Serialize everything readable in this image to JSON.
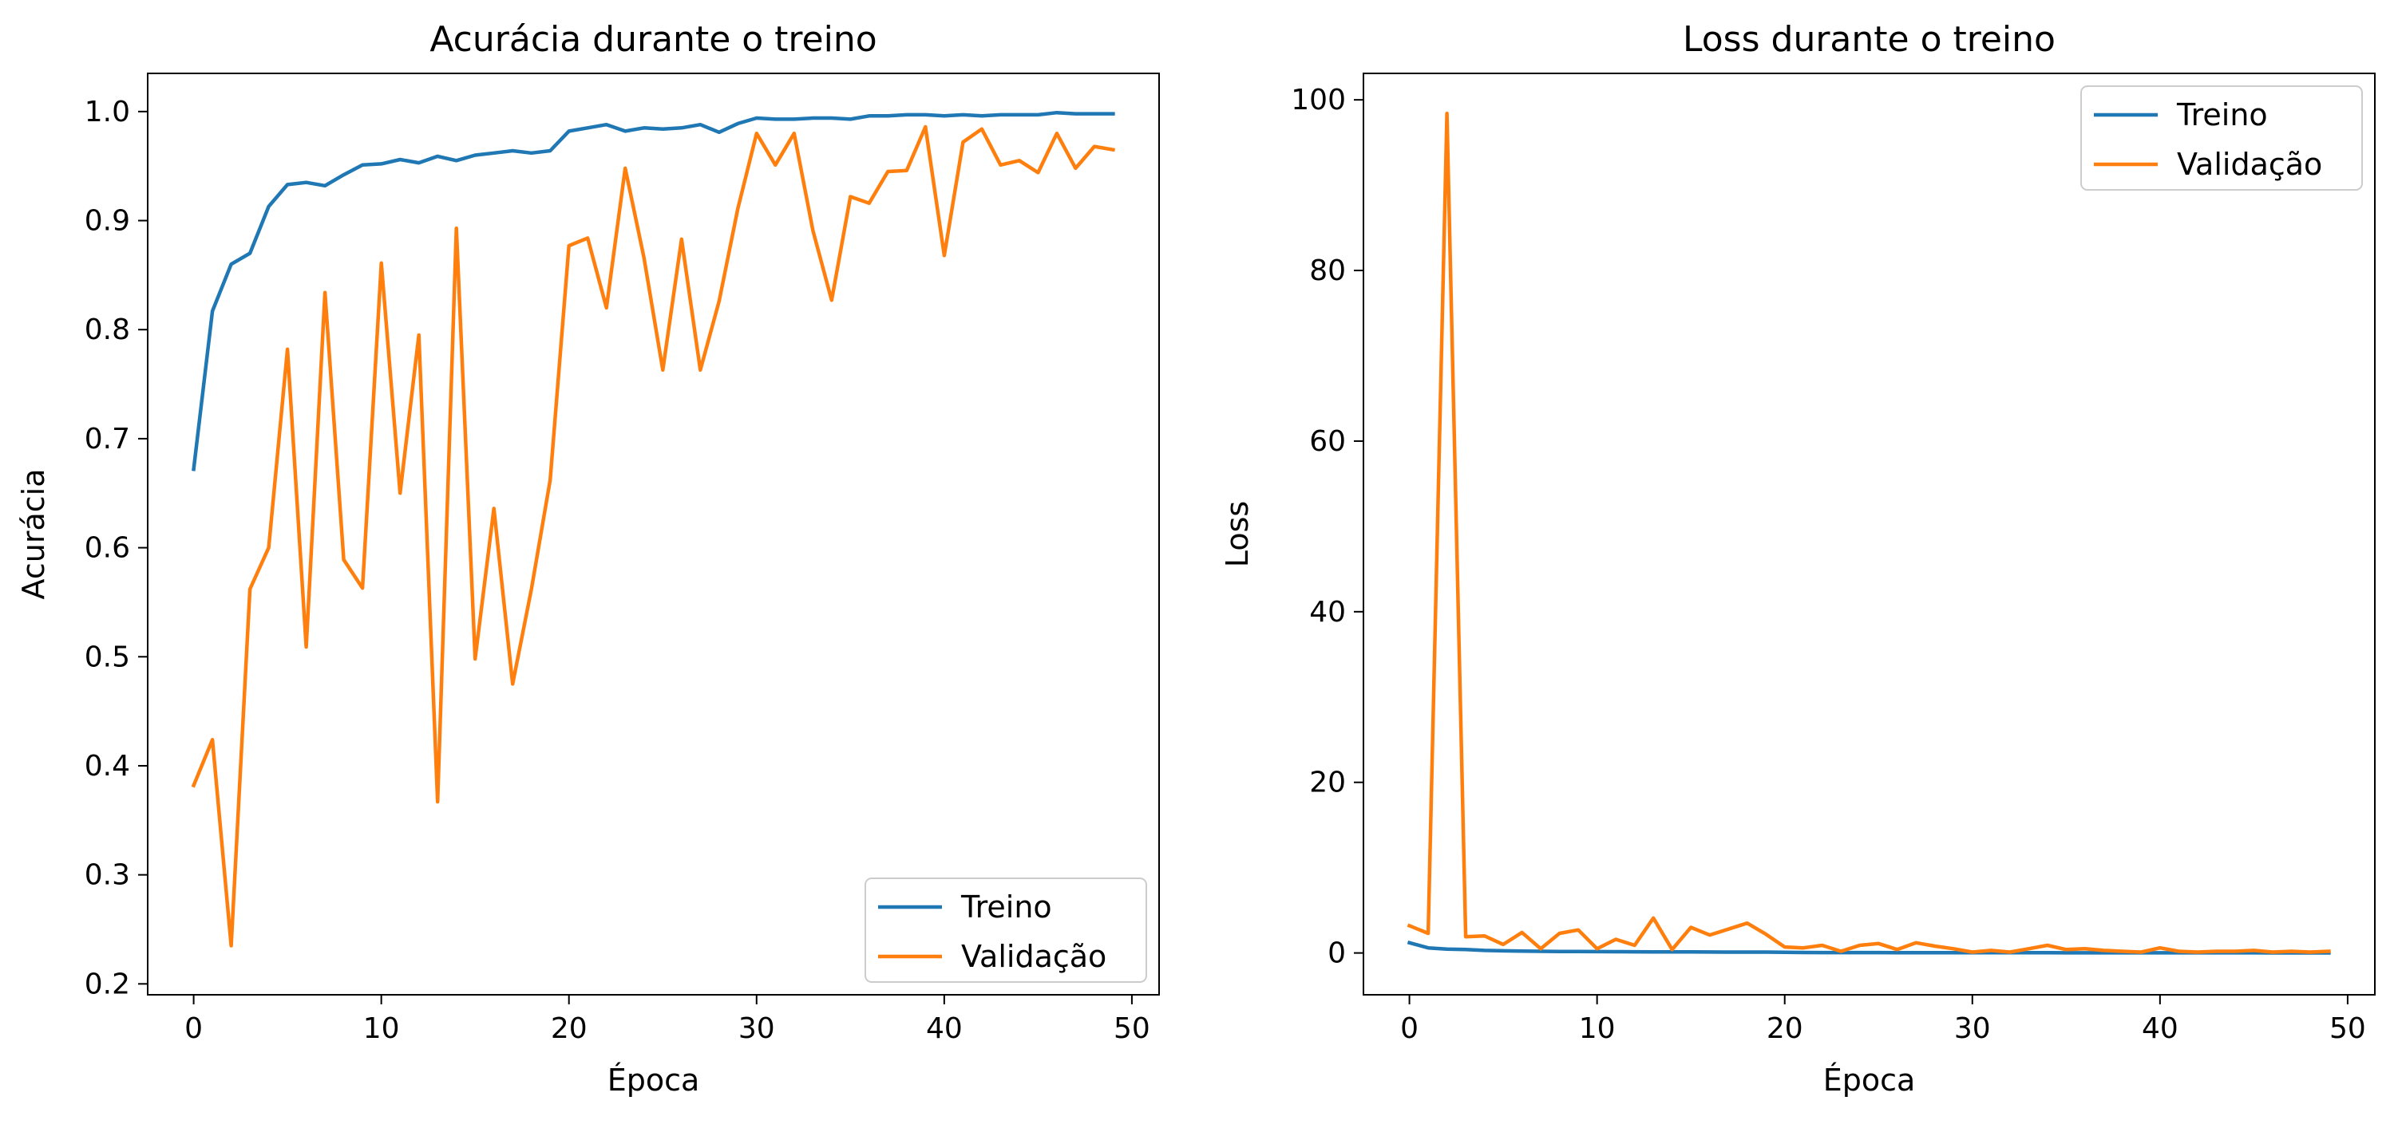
{
  "chart_data": [
    {
      "type": "line",
      "title": "Acurácia durante o treino",
      "xlabel": "Época",
      "ylabel": "Acurácia",
      "xlim": [
        -2.45,
        51.45
      ],
      "ylim": [
        0.19,
        1.035
      ],
      "xticks": [
        0,
        10,
        20,
        30,
        40,
        50
      ],
      "yticks": [
        0.2,
        0.3,
        0.4,
        0.5,
        0.6,
        0.7,
        0.8,
        0.9,
        1.0
      ],
      "grid": false,
      "legend": "lower right",
      "x": [
        0,
        1,
        2,
        3,
        4,
        5,
        6,
        7,
        8,
        9,
        10,
        11,
        12,
        13,
        14,
        15,
        16,
        17,
        18,
        19,
        20,
        21,
        22,
        23,
        24,
        25,
        26,
        27,
        28,
        29,
        30,
        31,
        32,
        33,
        34,
        35,
        36,
        37,
        38,
        39,
        40,
        41,
        42,
        43,
        44,
        45,
        46,
        47,
        48,
        49
      ],
      "series": [
        {
          "name": "Treino",
          "color": "#1f77b4",
          "values": [
            0.672,
            0.817,
            0.86,
            0.87,
            0.913,
            0.933,
            0.935,
            0.932,
            0.942,
            0.951,
            0.952,
            0.956,
            0.953,
            0.959,
            0.955,
            0.96,
            0.962,
            0.964,
            0.962,
            0.964,
            0.982,
            0.985,
            0.988,
            0.982,
            0.985,
            0.984,
            0.985,
            0.988,
            0.981,
            0.989,
            0.994,
            0.993,
            0.993,
            0.994,
            0.994,
            0.993,
            0.996,
            0.996,
            0.997,
            0.997,
            0.996,
            0.997,
            0.996,
            0.997,
            0.997,
            0.997,
            0.999,
            0.998,
            0.998,
            0.998
          ]
        },
        {
          "name": "Validação",
          "color": "#ff7f0e",
          "values": [
            0.382,
            0.424,
            0.235,
            0.562,
            0.6,
            0.782,
            0.509,
            0.834,
            0.589,
            0.563,
            0.861,
            0.65,
            0.795,
            0.367,
            0.893,
            0.498,
            0.636,
            0.475,
            0.562,
            0.662,
            0.877,
            0.884,
            0.82,
            0.948,
            0.866,
            0.763,
            0.883,
            0.763,
            0.826,
            0.911,
            0.98,
            0.951,
            0.98,
            0.891,
            0.827,
            0.922,
            0.916,
            0.945,
            0.946,
            0.986,
            0.868,
            0.972,
            0.984,
            0.951,
            0.955,
            0.944,
            0.98,
            0.948,
            0.968,
            0.965
          ]
        }
      ]
    },
    {
      "type": "line",
      "title": "Loss durante o treino",
      "xlabel": "Época",
      "ylabel": "Loss",
      "xlim": [
        -2.45,
        51.45
      ],
      "ylim": [
        -4.9,
        103.1
      ],
      "xticks": [
        0,
        10,
        20,
        30,
        40,
        50
      ],
      "yticks": [
        0,
        20,
        40,
        60,
        80,
        100
      ],
      "grid": false,
      "legend": "upper right",
      "x": [
        0,
        1,
        2,
        3,
        4,
        5,
        6,
        7,
        8,
        9,
        10,
        11,
        12,
        13,
        14,
        15,
        16,
        17,
        18,
        19,
        20,
        21,
        22,
        23,
        24,
        25,
        26,
        27,
        28,
        29,
        30,
        31,
        32,
        33,
        34,
        35,
        36,
        37,
        38,
        39,
        40,
        41,
        42,
        43,
        44,
        45,
        46,
        47,
        48,
        49
      ],
      "series": [
        {
          "name": "Treino",
          "color": "#1f77b4",
          "values": [
            1.2,
            0.6,
            0.45,
            0.4,
            0.3,
            0.25,
            0.22,
            0.2,
            0.18,
            0.17,
            0.16,
            0.15,
            0.14,
            0.13,
            0.12,
            0.12,
            0.11,
            0.1,
            0.1,
            0.1,
            0.07,
            0.06,
            0.05,
            0.05,
            0.05,
            0.05,
            0.04,
            0.04,
            0.04,
            0.04,
            0.03,
            0.03,
            0.03,
            0.03,
            0.03,
            0.02,
            0.02,
            0.02,
            0.02,
            0.02,
            0.02,
            0.02,
            0.02,
            0.02,
            0.02,
            0.02,
            0.01,
            0.01,
            0.01,
            0.01
          ]
        },
        {
          "name": "Validação",
          "color": "#ff7f0e",
          "values": [
            3.2,
            2.3,
            98.4,
            1.9,
            2.0,
            1.0,
            2.4,
            0.5,
            2.3,
            2.7,
            0.5,
            1.6,
            0.9,
            4.1,
            0.4,
            3.0,
            2.1,
            2.8,
            3.5,
            2.2,
            0.7,
            0.6,
            0.9,
            0.2,
            0.9,
            1.1,
            0.4,
            1.2,
            0.8,
            0.5,
            0.1,
            0.3,
            0.1,
            0.5,
            0.9,
            0.4,
            0.5,
            0.3,
            0.2,
            0.1,
            0.6,
            0.2,
            0.1,
            0.2,
            0.2,
            0.3,
            0.1,
            0.2,
            0.1,
            0.2
          ]
        }
      ]
    }
  ]
}
